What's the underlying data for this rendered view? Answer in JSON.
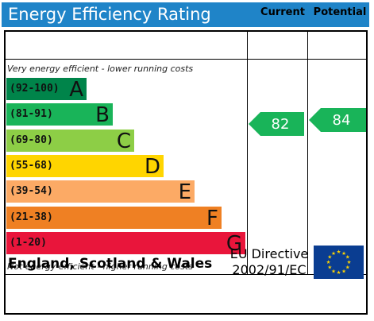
{
  "header": {
    "title": "Energy Efficiency Rating"
  },
  "columns": {
    "current": "Current",
    "potential": "Potential"
  },
  "notes": {
    "top": "Very energy efficient - lower running costs",
    "bottom": "Not energy efficient - higher running costs"
  },
  "footer": {
    "country": "England, Scotland & Wales",
    "directive_line1": "EU Directive",
    "directive_line2": "2002/91/EC"
  },
  "chart_data": {
    "type": "bar",
    "title": "Energy Efficiency Rating",
    "bands": [
      {
        "range": "(92-100)",
        "letter": "A",
        "color": "#00844a"
      },
      {
        "range": "(81-91)",
        "letter": "B",
        "color": "#19b459"
      },
      {
        "range": "(69-80)",
        "letter": "C",
        "color": "#8dce46"
      },
      {
        "range": "(55-68)",
        "letter": "D",
        "color": "#ffd500"
      },
      {
        "range": "(39-54)",
        "letter": "E",
        "color": "#fcaa65"
      },
      {
        "range": "(21-38)",
        "letter": "F",
        "color": "#ef8023"
      },
      {
        "range": "(1-20)",
        "letter": "G",
        "color": "#e9153b"
      }
    ],
    "current": {
      "value": "82",
      "band": "B",
      "color": "#19b459"
    },
    "potential": {
      "value": "84",
      "band": "B",
      "color": "#19b459"
    }
  }
}
